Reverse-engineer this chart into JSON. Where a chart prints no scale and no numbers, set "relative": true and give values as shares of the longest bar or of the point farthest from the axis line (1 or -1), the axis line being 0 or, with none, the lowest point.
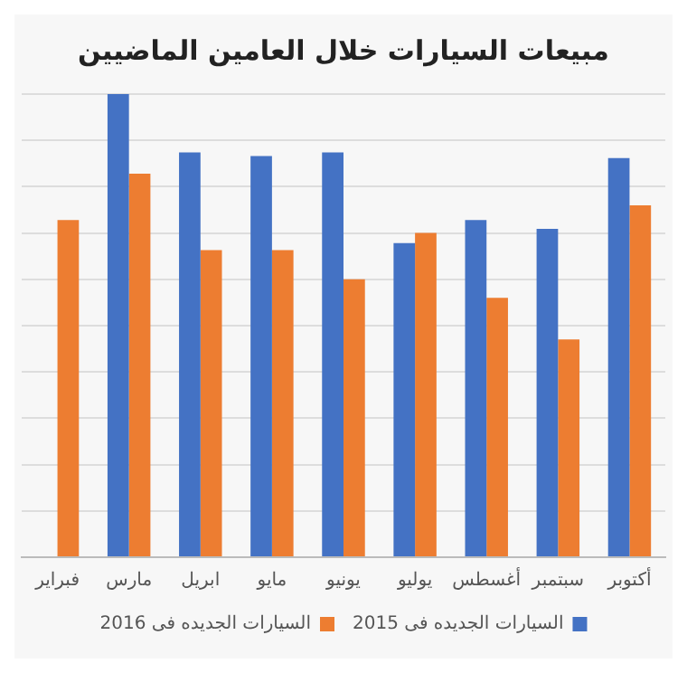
{
  "chart_data": {
    "type": "bar",
    "title": "مبيعات السيارات خلال العامين الماضيين",
    "categories": [
      "فبراير",
      "مارس",
      "ابريل",
      "مايو",
      "يونيو",
      "يوليو",
      "أغسطس",
      "سبتمبر",
      "أكتوبر"
    ],
    "relative": true,
    "grid": "y",
    "legend": "bottom",
    "series": [
      {
        "name": "السيارات الجديده فى 2015",
        "color": "#4472c4",
        "values": [
          null,
          1,
          0.874,
          0.866,
          0.874,
          0.678,
          0.728,
          0.709,
          0.862
        ]
      },
      {
        "name": "السيارات الجديده فى 2016",
        "color": "#ed7d31",
        "values": [
          0.728,
          0.828,
          0.663,
          0.663,
          0.6,
          0.7,
          0.56,
          0.47,
          0.76
        ]
      }
    ]
  }
}
